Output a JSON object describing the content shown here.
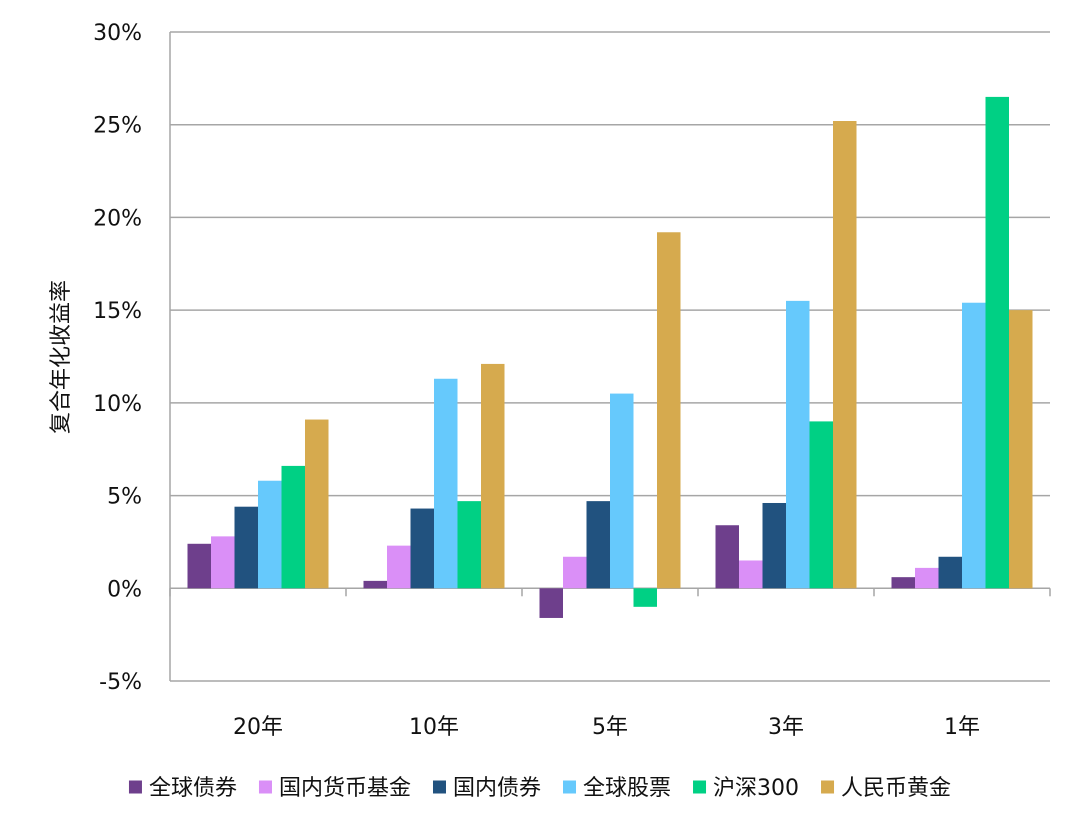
{
  "chart_data": {
    "type": "bar",
    "title": "",
    "xlabel": "",
    "ylabel": "复合年化收益率",
    "categories": [
      "20年",
      "10年",
      "5年",
      "3年",
      "1年"
    ],
    "ylim": [
      -5,
      30
    ],
    "yticks": [
      -5,
      0,
      5,
      10,
      15,
      20,
      25,
      30
    ],
    "ytick_labels": [
      "-5%",
      "0%",
      "5%",
      "10%",
      "15%",
      "20%",
      "25%",
      "30%"
    ],
    "grid": true,
    "legend_position": "bottom",
    "series": [
      {
        "name": "全球债券",
        "color": "#6E3F8C",
        "values": [
          2.4,
          0.4,
          -1.6,
          3.4,
          0.6
        ]
      },
      {
        "name": "国内货币基金",
        "color": "#DA8FF7",
        "values": [
          2.8,
          2.3,
          1.7,
          1.5,
          1.1
        ]
      },
      {
        "name": "国内债券",
        "color": "#21527F",
        "values": [
          4.4,
          4.3,
          4.7,
          4.6,
          1.7
        ]
      },
      {
        "name": "全球股票",
        "color": "#66C9FC",
        "values": [
          5.8,
          11.3,
          10.5,
          15.5,
          15.4
        ]
      },
      {
        "name": "沪深300",
        "color": "#00D084",
        "values": [
          6.6,
          4.7,
          -1.0,
          9.0,
          26.5
        ]
      },
      {
        "name": "人民币黄金",
        "color": "#D6AA4E",
        "values": [
          9.1,
          12.1,
          19.2,
          25.2,
          15.0
        ]
      }
    ]
  }
}
